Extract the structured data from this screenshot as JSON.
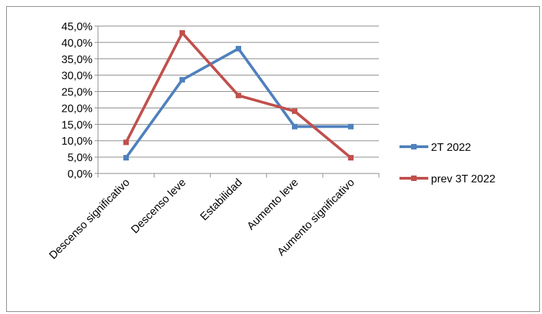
{
  "chart_data": {
    "type": "line",
    "title": "",
    "xlabel": "",
    "ylabel": "",
    "categories": [
      "Descenso significativo",
      "Descenso leve",
      "Estabilidad",
      "Aumento leve",
      "Aumento significativo"
    ],
    "y_ticks": [
      "0,0%",
      "5,0%",
      "10,0%",
      "15,0%",
      "20,0%",
      "25,0%",
      "30,0%",
      "35,0%",
      "40,0%",
      "45,0%"
    ],
    "ylim": [
      0,
      45
    ],
    "grid": true,
    "legend_position": "right",
    "series": [
      {
        "name": "2T 2022",
        "color": "#4F81BD",
        "values": [
          4.8,
          28.6,
          38.1,
          14.3,
          14.3
        ]
      },
      {
        "name": "prev 3T 2022",
        "color": "#C0504D",
        "values": [
          9.5,
          42.9,
          23.8,
          19.0,
          4.8
        ]
      }
    ]
  }
}
